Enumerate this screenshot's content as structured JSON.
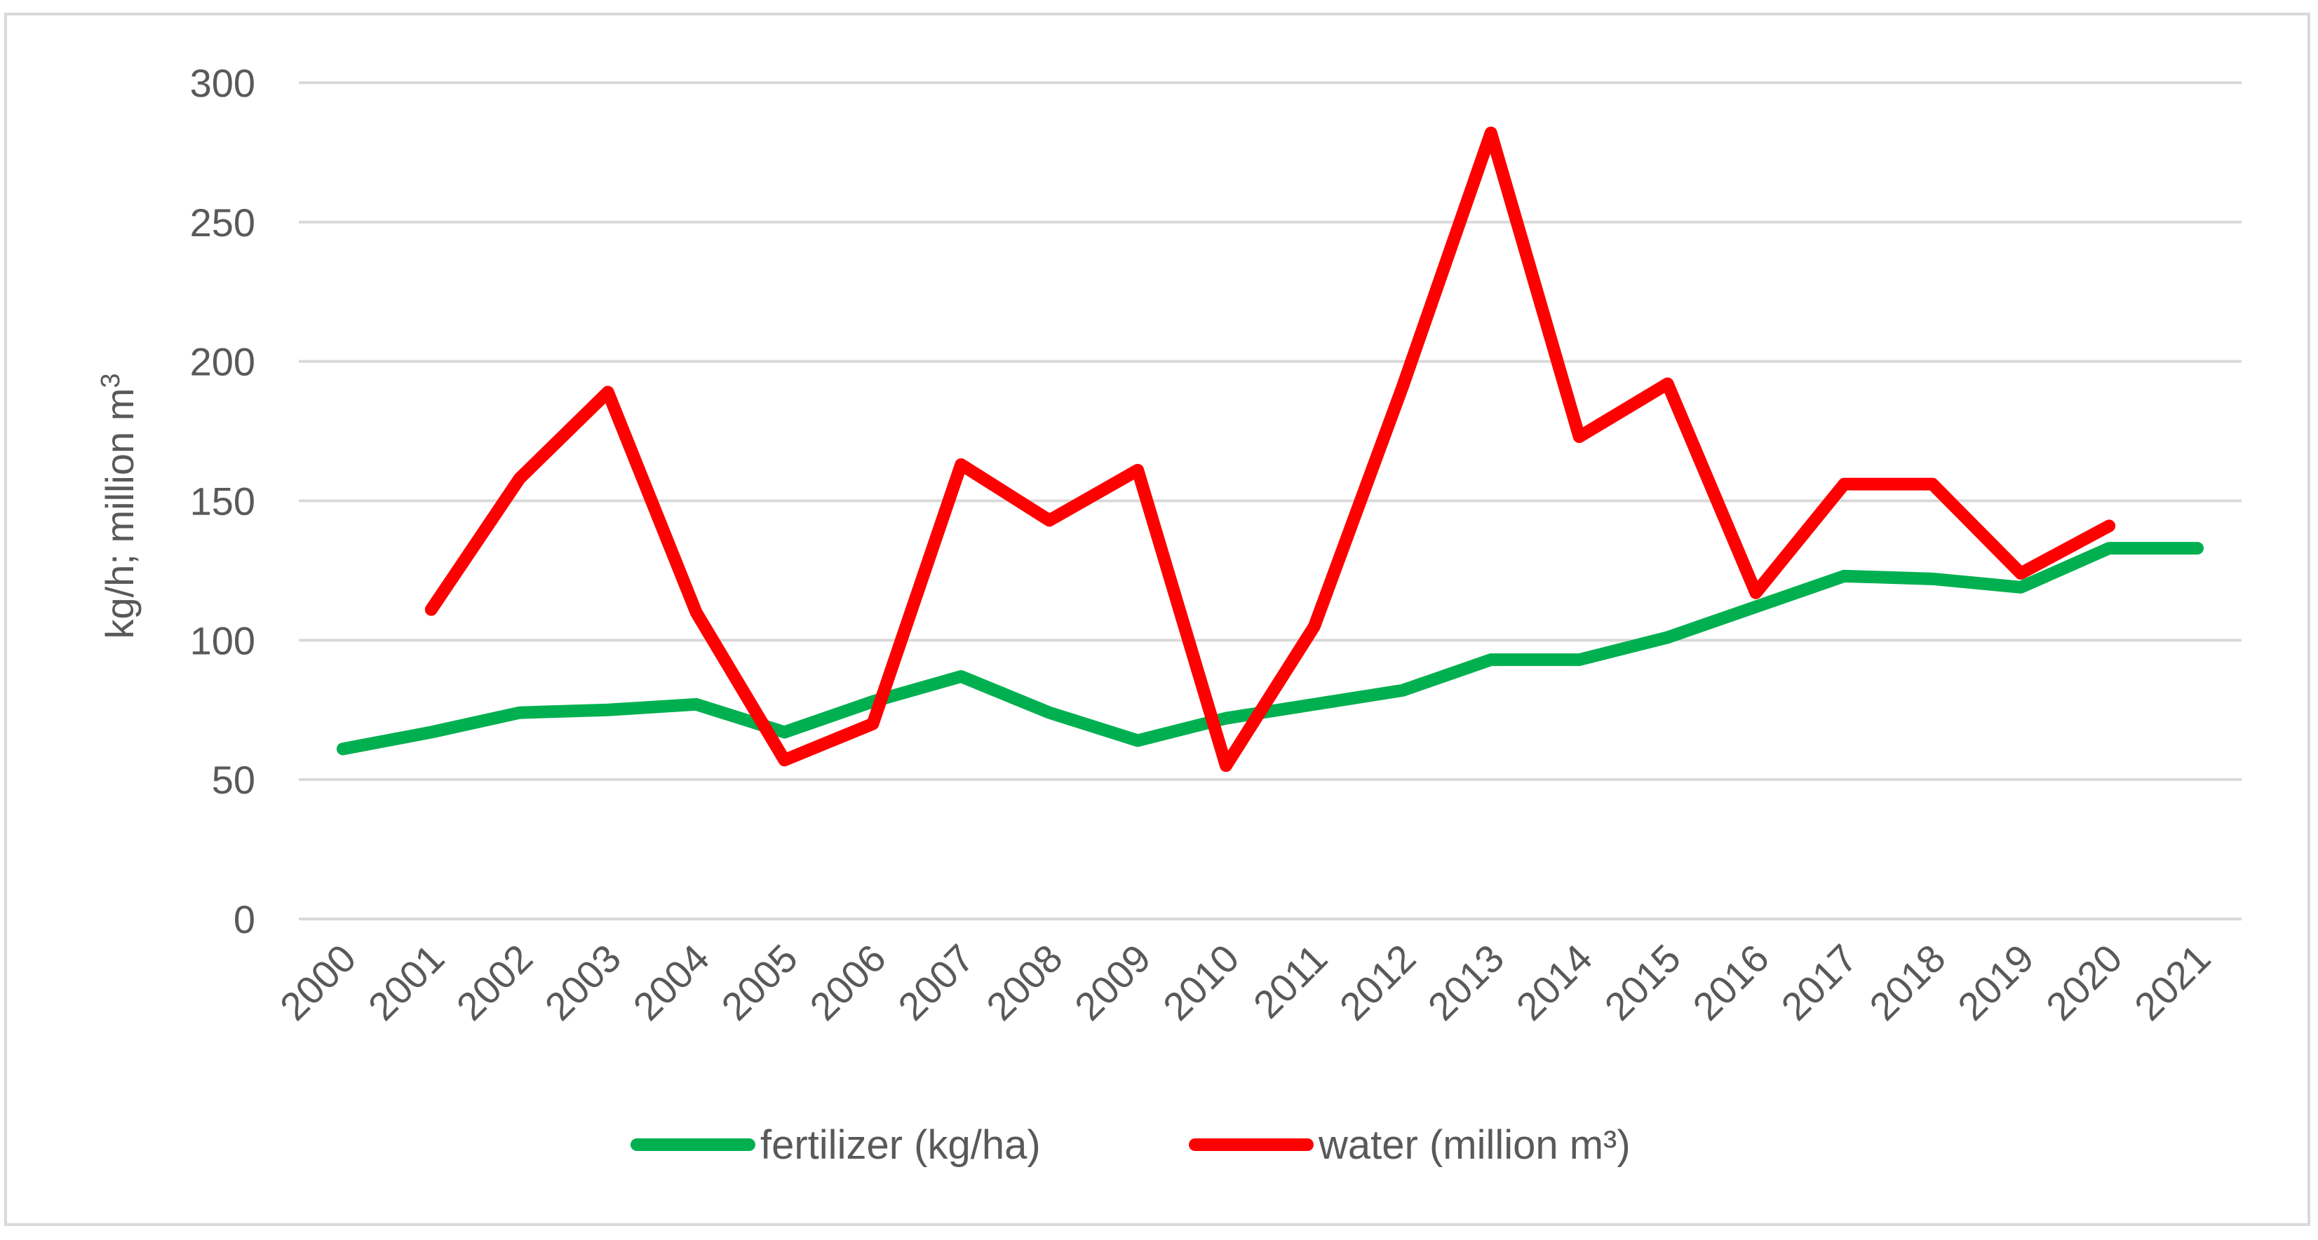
{
  "chart_data": {
    "type": "line",
    "title": "",
    "xlabel": "",
    "ylabel": "kg/h; million m",
    "ylabel_superscript": "3",
    "ylim": [
      0,
      300
    ],
    "yticks": [
      0,
      50,
      100,
      150,
      200,
      250,
      300
    ],
    "grid": true,
    "legend_position": "bottom",
    "categories": [
      "2000",
      "2001",
      "2002",
      "2003",
      "2004",
      "2005",
      "2006",
      "2007",
      "2008",
      "2009",
      "2010",
      "2011",
      "2012",
      "2013",
      "2014",
      "2015",
      "2016",
      "2017",
      "2018",
      "2019",
      "2020",
      "2021"
    ],
    "series": [
      {
        "name": "fertilizer (kg/ha)",
        "color": "#00b050",
        "values": [
          61,
          67,
          74,
          75,
          77,
          67,
          78,
          87,
          74,
          64,
          72,
          77,
          82,
          93,
          93,
          101,
          112,
          123,
          122,
          119,
          133,
          133
        ]
      },
      {
        "name": "water (million m³)",
        "color": "#ff0000",
        "values": [
          null,
          111,
          158,
          189,
          110,
          57,
          70,
          163,
          143,
          161,
          55,
          105,
          191,
          282,
          173,
          192,
          117,
          156,
          156,
          124,
          141,
          null
        ]
      }
    ]
  }
}
